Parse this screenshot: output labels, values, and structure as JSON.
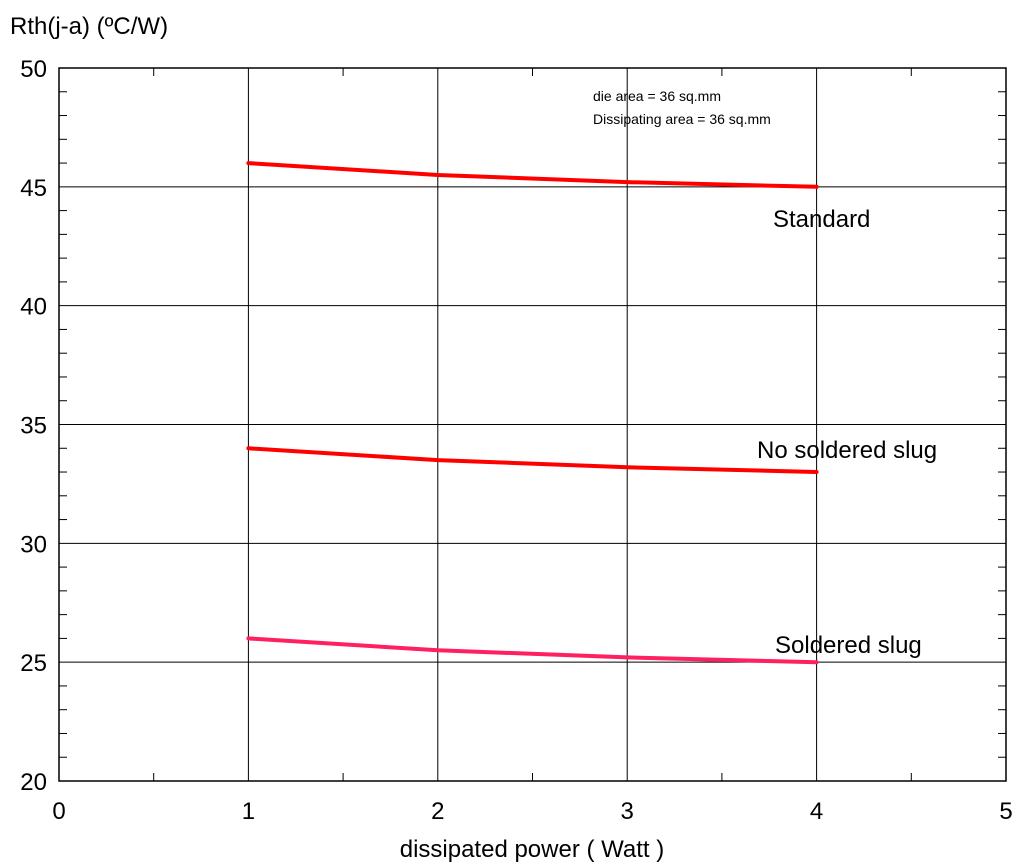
{
  "chart_data": {
    "type": "line",
    "ylabel": "Rth(j-a) (ºC/W)",
    "xlabel": "dissipated power ( Watt )",
    "xlim": [
      0,
      5
    ],
    "ylim": [
      20,
      50
    ],
    "x_ticks": [
      0,
      1,
      2,
      3,
      4,
      5
    ],
    "y_ticks": [
      20,
      25,
      30,
      35,
      40,
      45,
      50
    ],
    "grid": true,
    "annotations": [
      "die area = 36 sq.mm",
      "Dissipating area =  36 sq.mm"
    ],
    "series": [
      {
        "name": "Standard",
        "color": "#ff0000",
        "x": [
          1,
          2,
          3,
          4
        ],
        "y": [
          46.0,
          45.5,
          45.2,
          45.0
        ]
      },
      {
        "name": "No soldered slug",
        "color": "#ff0000",
        "x": [
          1,
          2,
          3,
          4
        ],
        "y": [
          34.0,
          33.5,
          33.2,
          33.0
        ]
      },
      {
        "name": "Soldered slug",
        "color": "#ff2060",
        "x": [
          1,
          2,
          3,
          4
        ],
        "y": [
          26.0,
          25.5,
          25.2,
          25.0
        ]
      }
    ]
  }
}
